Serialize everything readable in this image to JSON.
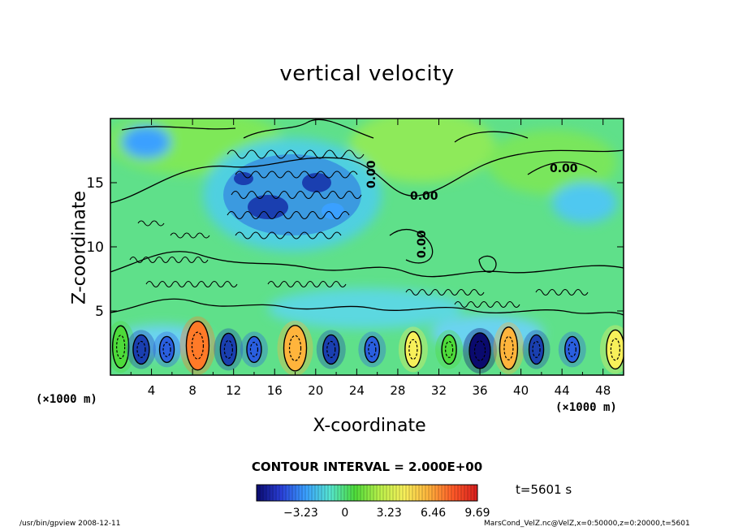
{
  "chart_data": {
    "type": "heatmap",
    "title": "vertical velocity",
    "xlabel": "X-coordinate",
    "ylabel": "Z-coordinate",
    "x_unit": "(×1000 m)",
    "y_unit": "(×1000 m)",
    "xlim": [
      0,
      50
    ],
    "ylim": [
      0,
      20
    ],
    "x_ticks": [
      "4",
      "8",
      "12",
      "16",
      "20",
      "24",
      "28",
      "32",
      "36",
      "40",
      "44",
      "48"
    ],
    "y_ticks": [
      "5",
      "10",
      "15"
    ],
    "contour_labels": [
      "0.00",
      "0.00",
      "0.00",
      "0.00"
    ],
    "contour_interval": "CONTOUR INTERVAL = 2.000E+00",
    "colorbar_ticks": [
      "−3.23",
      "0",
      "3.23",
      "6.46",
      "9.69"
    ],
    "colorbar_values": [
      -3.23,
      0,
      3.23,
      6.46,
      9.69
    ],
    "colorbar_colors": [
      "#0a0a6e",
      "#2a3fd8",
      "#3aa0ff",
      "#56e6d0",
      "#4ddb3a",
      "#b8f04a",
      "#f7f05a",
      "#ffb43c",
      "#ff5a28",
      "#d81e1e"
    ],
    "annotation_time": "t=5601 s"
  },
  "footer": {
    "left": "/usr/bin/gpview   2008-12-11",
    "right": "MarsCond_VelZ.nc@VelZ,x=0:50000,z=0:20000,t=5601"
  }
}
